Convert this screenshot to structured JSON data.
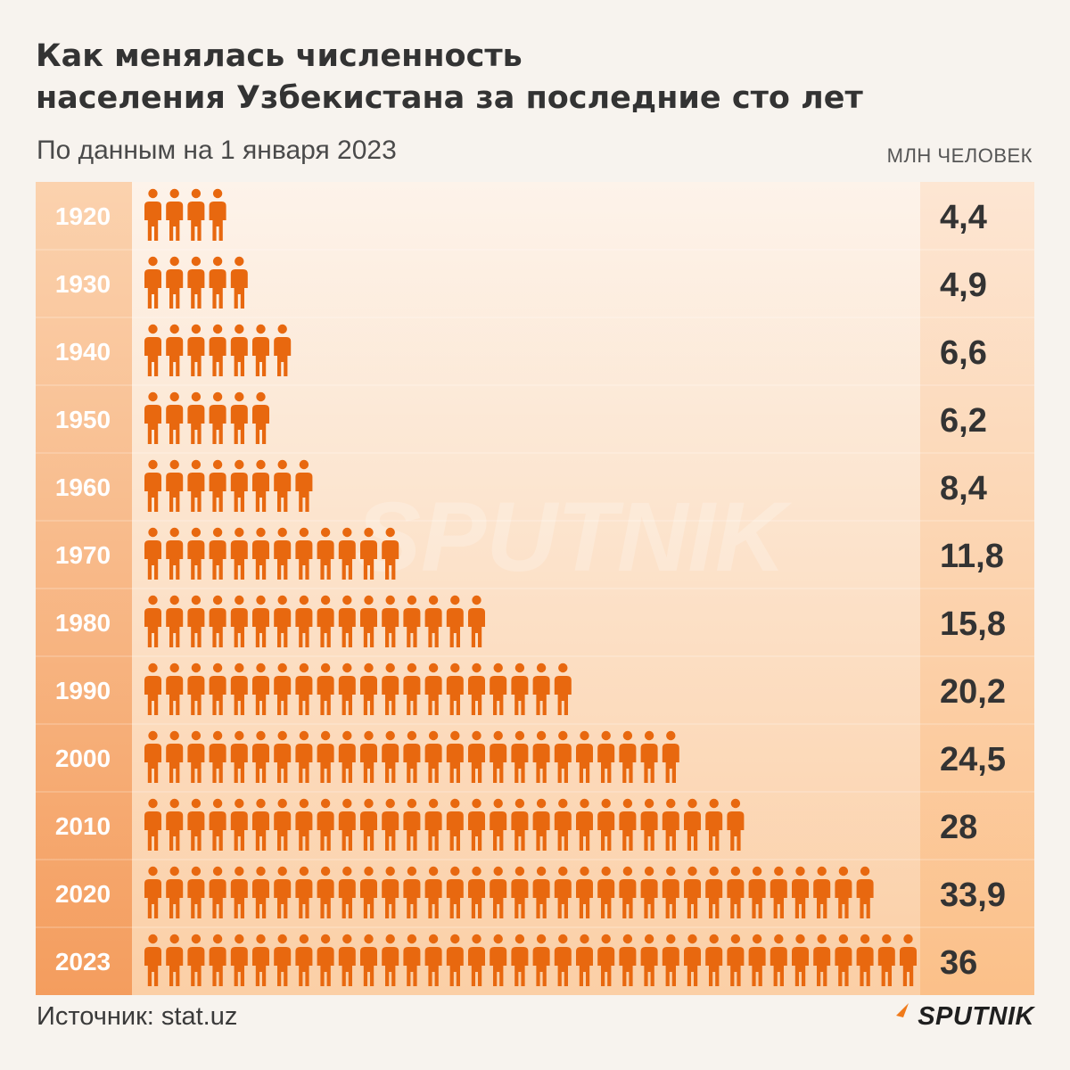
{
  "title_line1": "Как менялась численность",
  "title_line2": "населения Узбекистана за последние сто лет",
  "subtitle": "По данным на 1 января 2023",
  "unit_label": "МЛН ЧЕЛОВЕК",
  "source": "Источник: stat.uz",
  "logo_text": "SPUTNIK",
  "watermark_text": "SPUTNIK",
  "icon_name": "person-icon",
  "colors": {
    "icon": "#e8680f",
    "year_column": "#f5a66e",
    "value_column": "#fbe4d0",
    "background": "#f7f3ee",
    "text": "#333333"
  },
  "chart_data": {
    "type": "bar",
    "title": "Как менялась численность населения Узбекистана за последние сто лет",
    "subtitle": "По данным на 1 января 2023",
    "ylabel": "МЛН ЧЕЛОВЕК",
    "categories": [
      "1920",
      "1930",
      "1940",
      "1950",
      "1960",
      "1970",
      "1980",
      "1990",
      "2000",
      "2010",
      "2020",
      "2023"
    ],
    "values": [
      4.4,
      4.9,
      6.6,
      6.2,
      8.4,
      11.8,
      15.8,
      20.2,
      24.5,
      28,
      33.9,
      36
    ],
    "value_labels": [
      "4,4",
      "4,9",
      "6,6",
      "6,2",
      "8,4",
      "11,8",
      "15,8",
      "20,2",
      "24,5",
      "28",
      "33,9",
      "36"
    ],
    "icon_counts": [
      4,
      5,
      7,
      6,
      8,
      12,
      16,
      20,
      25,
      28,
      34,
      36
    ],
    "orientation": "horizontal",
    "grid": false
  }
}
